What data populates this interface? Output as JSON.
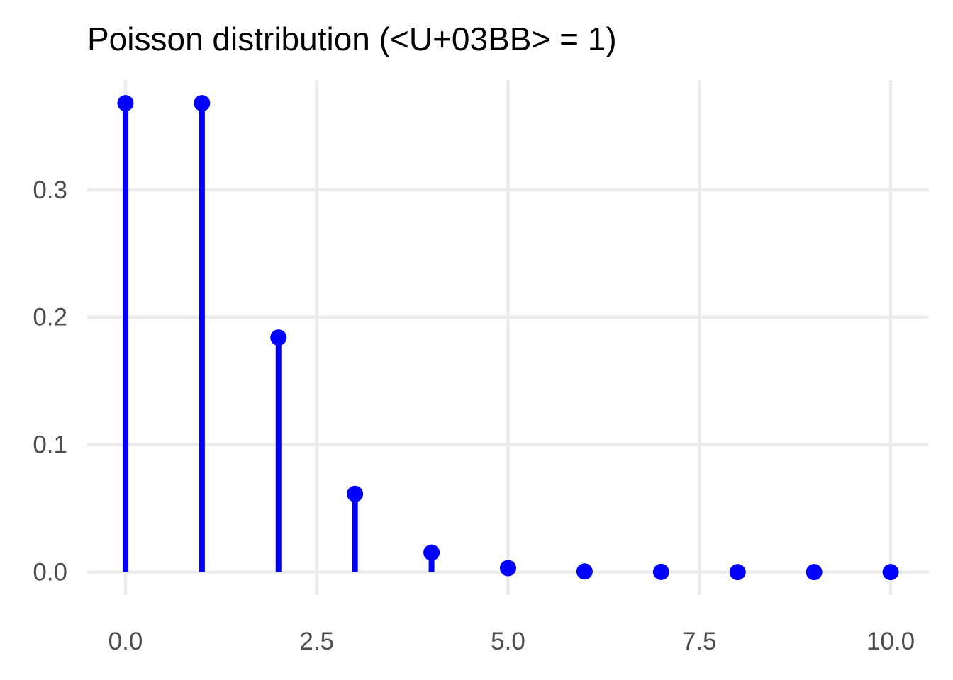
{
  "chart_data": {
    "type": "lollipop",
    "title": "Poisson distribution (<U+03BB> = 1)",
    "xlabel": "",
    "ylabel": "",
    "x": [
      0,
      1,
      2,
      3,
      4,
      5,
      6,
      7,
      8,
      9,
      10
    ],
    "y": [
      0.3679,
      0.3679,
      0.1839,
      0.0613,
      0.0153,
      0.0031,
      0.0005,
      0.0001,
      0.0,
      0.0,
      0.0
    ],
    "xlim": [
      -0.5,
      10.5
    ],
    "ylim": [
      -0.018,
      0.386
    ],
    "x_ticks": [
      0,
      2.5,
      5,
      7.5,
      10
    ],
    "x_tick_labels": [
      "0.0",
      "2.5",
      "5.0",
      "7.5",
      "10.0"
    ],
    "y_ticks": [
      0,
      0.1,
      0.2,
      0.3
    ],
    "y_tick_labels": [
      "0.0",
      "0.1",
      "0.2",
      "0.3"
    ],
    "grid": true,
    "legend": "none",
    "color": "#0000ff",
    "grid_color": "#ebebeb"
  }
}
